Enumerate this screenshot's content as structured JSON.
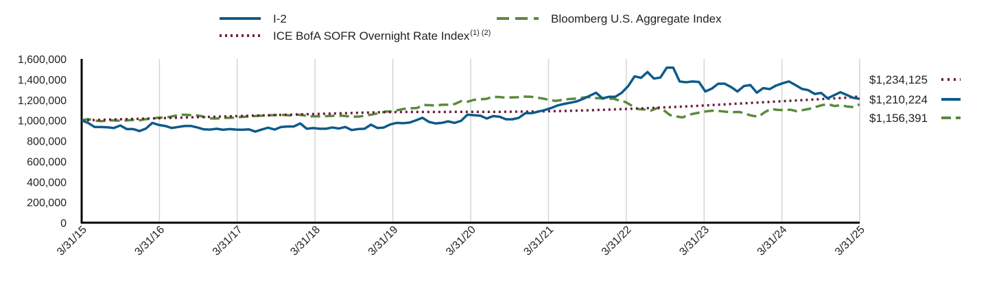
{
  "chart_data": {
    "type": "line",
    "title": "",
    "xlabel": "",
    "ylabel": "",
    "ylim": [
      0,
      1600000
    ],
    "grid": "vertical",
    "legend_position": "top",
    "x_labels": [
      "3/31/15",
      "3/31/16",
      "3/31/17",
      "3/31/18",
      "3/31/19",
      "3/31/20",
      "3/31/21",
      "3/31/22",
      "3/31/23",
      "3/31/24",
      "3/31/25"
    ],
    "y_ticks": [
      {
        "value": 0,
        "label": "0"
      },
      {
        "value": 200000,
        "label": "200,000"
      },
      {
        "value": 400000,
        "label": "400,000"
      },
      {
        "value": 600000,
        "label": "600,000"
      },
      {
        "value": 800000,
        "label": "800,000"
      },
      {
        "value": 1000000,
        "label": "1,000,000"
      },
      {
        "value": 1200000,
        "label": "1,200,000"
      },
      {
        "value": 1400000,
        "label": "1,400,000"
      },
      {
        "value": 1600000,
        "label": "1,600,000"
      }
    ],
    "series": [
      {
        "name": "I-2",
        "color": "#0d5a8a",
        "style": "solid",
        "end_label": "$1,210,224",
        "values": [
          1000000,
          975000,
          935000,
          935000,
          932000,
          925000,
          950000,
          915000,
          915000,
          895000,
          920000,
          975000,
          955000,
          945000,
          925000,
          935000,
          945000,
          945000,
          930000,
          912000,
          910000,
          918000,
          908000,
          915000,
          910000,
          908000,
          912000,
          890000,
          910000,
          928000,
          910000,
          935000,
          940000,
          940000,
          970000,
          918000,
          925000,
          918000,
          918000,
          930000,
          920000,
          935000,
          905000,
          915000,
          918000,
          958000,
          925000,
          930000,
          960000,
          975000,
          972000,
          978000,
          1000000,
          1025000,
          985000,
          970000,
          975000,
          990000,
          975000,
          995000,
          1055000,
          1050000,
          1045000,
          1018000,
          1042000,
          1035000,
          1010000,
          1010000,
          1025000,
          1070000,
          1070000,
          1085000,
          1100000,
          1120000,
          1145000,
          1160000,
          1172000,
          1185000,
          1210000,
          1240000,
          1270000,
          1215000,
          1230000,
          1230000,
          1270000,
          1335000,
          1430000,
          1415000,
          1472000,
          1408000,
          1418000,
          1515000,
          1515000,
          1380000,
          1372000,
          1380000,
          1375000,
          1282000,
          1310000,
          1358000,
          1358000,
          1325000,
          1282000,
          1335000,
          1345000,
          1270000,
          1315000,
          1305000,
          1340000,
          1362000,
          1380000,
          1345000,
          1308000,
          1295000,
          1258000,
          1268000,
          1215000,
          1245000,
          1275000,
          1248000,
          1220000,
          1210224
        ]
      },
      {
        "name": "Bloomberg U.S. Aggregate Index",
        "color": "#5a8a3a",
        "style": "dashed",
        "end_label": "$1,156,391",
        "values": [
          1000000,
          1012000,
          998000,
          992000,
          996000,
          1000000,
          996000,
          998000,
          1004000,
          998000,
          1010000,
          1016000,
          1025000,
          1028000,
          1034000,
          1048000,
          1055000,
          1052000,
          1050000,
          1040000,
          1020000,
          1018000,
          1020000,
          1024000,
          1026000,
          1032000,
          1036000,
          1040000,
          1044000,
          1046000,
          1050000,
          1052000,
          1053000,
          1048000,
          1056000,
          1050000,
          1038000,
          1040000,
          1038000,
          1042000,
          1044000,
          1046000,
          1040000,
          1036000,
          1038000,
          1048000,
          1058000,
          1070000,
          1085000,
          1088000,
          1100000,
          1112000,
          1118000,
          1120000,
          1150000,
          1148000,
          1145000,
          1152000,
          1152000,
          1160000,
          1188000,
          1182000,
          1200000,
          1205000,
          1210000,
          1230000,
          1228000,
          1222000,
          1224000,
          1226000,
          1232000,
          1230000,
          1222000,
          1212000,
          1198000,
          1190000,
          1200000,
          1208000,
          1212000,
          1220000,
          1228000,
          1218000,
          1215000,
          1210000,
          1212000,
          1194000,
          1178000,
          1142000,
          1110000,
          1105000,
          1095000,
          1120000,
          1100000,
          1052000,
          1038000,
          1028000,
          1056000,
          1068000,
          1080000,
          1090000,
          1096000,
          1090000,
          1083000,
          1080000,
          1082000,
          1062000,
          1045000,
          1035000,
          1080000,
          1112000,
          1102000,
          1100000,
          1104000,
          1090000,
          1100000,
          1112000,
          1130000,
          1148000,
          1158000,
          1140000,
          1148000,
          1135000,
          1130000,
          1156391
        ]
      },
      {
        "name": "ICE BofA SOFR Overnight Rate Index",
        "superscript": "(1) (2)",
        "color": "#6b1a3a",
        "style": "dotted",
        "end_label": "$1,234,125",
        "values": [
          1000000,
          1003000,
          1006000,
          1009000,
          1012000,
          1015000,
          1018000,
          1021000,
          1024000,
          1027000,
          1030000,
          1033000,
          1036000,
          1039000,
          1042000,
          1045000,
          1048000,
          1051000,
          1054000,
          1057000,
          1060000,
          1063000,
          1066000,
          1069000,
          1072000,
          1075000,
          1078000,
          1080000,
          1081000,
          1082000,
          1082000,
          1082000,
          1082000,
          1083000,
          1083000,
          1083000,
          1083000,
          1083000,
          1084000,
          1085000,
          1086000,
          1088000,
          1090000,
          1092000,
          1095000,
          1098000,
          1102000,
          1106000,
          1110000,
          1114000,
          1118000,
          1123000,
          1128000,
          1133000,
          1138000,
          1144000,
          1150000,
          1156000,
          1162000,
          1168000,
          1174000,
          1180000,
          1186000,
          1192000,
          1198000,
          1204000,
          1210000,
          1216000,
          1222000,
          1234125
        ]
      }
    ]
  }
}
